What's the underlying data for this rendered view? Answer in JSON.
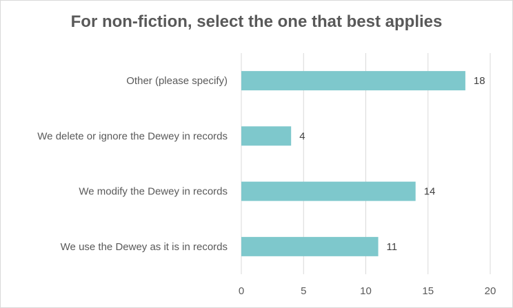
{
  "chart_data": {
    "type": "bar",
    "orientation": "horizontal",
    "title": "For non-fiction, select the one that best applies",
    "categories": [
      "Other (please specify)",
      "We delete or ignore the Dewey in records",
      "We modify the Dewey in records",
      "We use the Dewey as it is in records"
    ],
    "values": [
      18,
      4,
      14,
      11
    ],
    "xlim": [
      0,
      20
    ],
    "xticks": [
      0,
      5,
      10,
      15,
      20
    ],
    "xlabel": "",
    "ylabel": "",
    "grid": "vertical",
    "legend": "none",
    "data_labels": true,
    "bar_color": "#7ec8cc",
    "gridline_color": "#d9d9d9"
  }
}
